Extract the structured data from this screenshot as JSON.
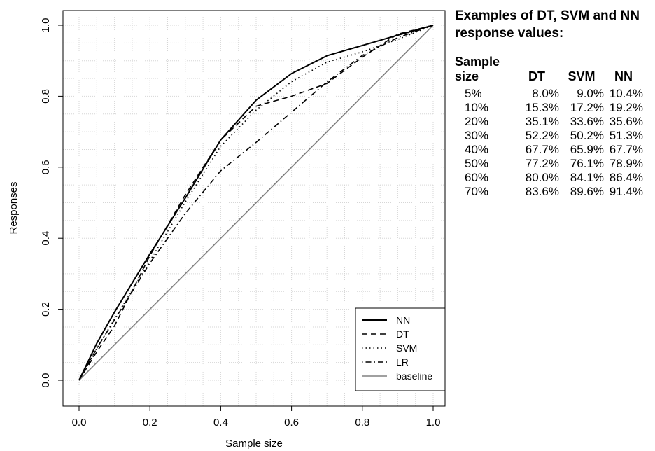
{
  "chart_data": {
    "type": "line",
    "xlabel": "Sample size",
    "ylabel": "Responses",
    "xlim": [
      0,
      1
    ],
    "ylim": [
      0,
      1
    ],
    "x_ticks": [
      "0.0",
      "0.2",
      "0.4",
      "0.6",
      "0.8",
      "1.0"
    ],
    "y_ticks": [
      "0.0",
      "0.2",
      "0.4",
      "0.6",
      "0.8",
      "1.0"
    ],
    "grid": true,
    "legend_position": "bottom-right",
    "series": [
      {
        "name": "NN",
        "style": "solid",
        "color": "#000000",
        "x": [
          0,
          0.05,
          0.1,
          0.2,
          0.3,
          0.4,
          0.5,
          0.6,
          0.7,
          0.8,
          0.9,
          1.0
        ],
        "y": [
          0,
          0.104,
          0.192,
          0.356,
          0.513,
          0.677,
          0.789,
          0.864,
          0.914,
          0.943,
          0.972,
          1.0
        ]
      },
      {
        "name": "DT",
        "style": "dashed",
        "color": "#000000",
        "x": [
          0,
          0.05,
          0.1,
          0.2,
          0.3,
          0.4,
          0.5,
          0.6,
          0.7,
          0.8,
          0.9,
          1.0
        ],
        "y": [
          0,
          0.08,
          0.153,
          0.351,
          0.522,
          0.677,
          0.772,
          0.8,
          0.836,
          0.91,
          0.975,
          1.0
        ]
      },
      {
        "name": "SVM",
        "style": "dotted",
        "color": "#000000",
        "x": [
          0,
          0.05,
          0.1,
          0.2,
          0.3,
          0.4,
          0.5,
          0.6,
          0.7,
          0.8,
          0.9,
          1.0
        ],
        "y": [
          0,
          0.09,
          0.172,
          0.336,
          0.502,
          0.659,
          0.761,
          0.841,
          0.896,
          0.925,
          0.96,
          1.0
        ]
      },
      {
        "name": "LR",
        "style": "dotdash",
        "color": "#000000",
        "x": [
          0,
          0.05,
          0.1,
          0.2,
          0.3,
          0.4,
          0.5,
          0.6,
          0.7,
          0.8,
          0.9,
          1.0
        ],
        "y": [
          0,
          0.09,
          0.17,
          0.33,
          0.47,
          0.59,
          0.67,
          0.755,
          0.84,
          0.915,
          0.965,
          1.0
        ]
      },
      {
        "name": "baseline",
        "style": "solid",
        "color": "#808080",
        "x": [
          0,
          1.0
        ],
        "y": [
          0,
          1.0
        ]
      }
    ]
  },
  "panel": {
    "title": "Examples of DT, SVM and NN response values:",
    "headers": {
      "size": "Sample size",
      "dt": "DT",
      "svm": "SVM",
      "nn": "NN"
    },
    "rows": [
      {
        "size": "5%",
        "dt": "8.0%",
        "svm": "9.0%",
        "nn": "10.4%"
      },
      {
        "size": "10%",
        "dt": "15.3%",
        "svm": "17.2%",
        "nn": "19.2%"
      },
      {
        "size": "20%",
        "dt": "35.1%",
        "svm": "33.6%",
        "nn": "35.6%"
      },
      {
        "size": "30%",
        "dt": "52.2%",
        "svm": "50.2%",
        "nn": "51.3%"
      },
      {
        "size": "40%",
        "dt": "67.7%",
        "svm": "65.9%",
        "nn": "67.7%"
      },
      {
        "size": "50%",
        "dt": "77.2%",
        "svm": "76.1%",
        "nn": "78.9%"
      },
      {
        "size": "60%",
        "dt": "80.0%",
        "svm": "84.1%",
        "nn": "86.4%"
      },
      {
        "size": "70%",
        "dt": "83.6%",
        "svm": "89.6%",
        "nn": "91.4%"
      }
    ]
  }
}
